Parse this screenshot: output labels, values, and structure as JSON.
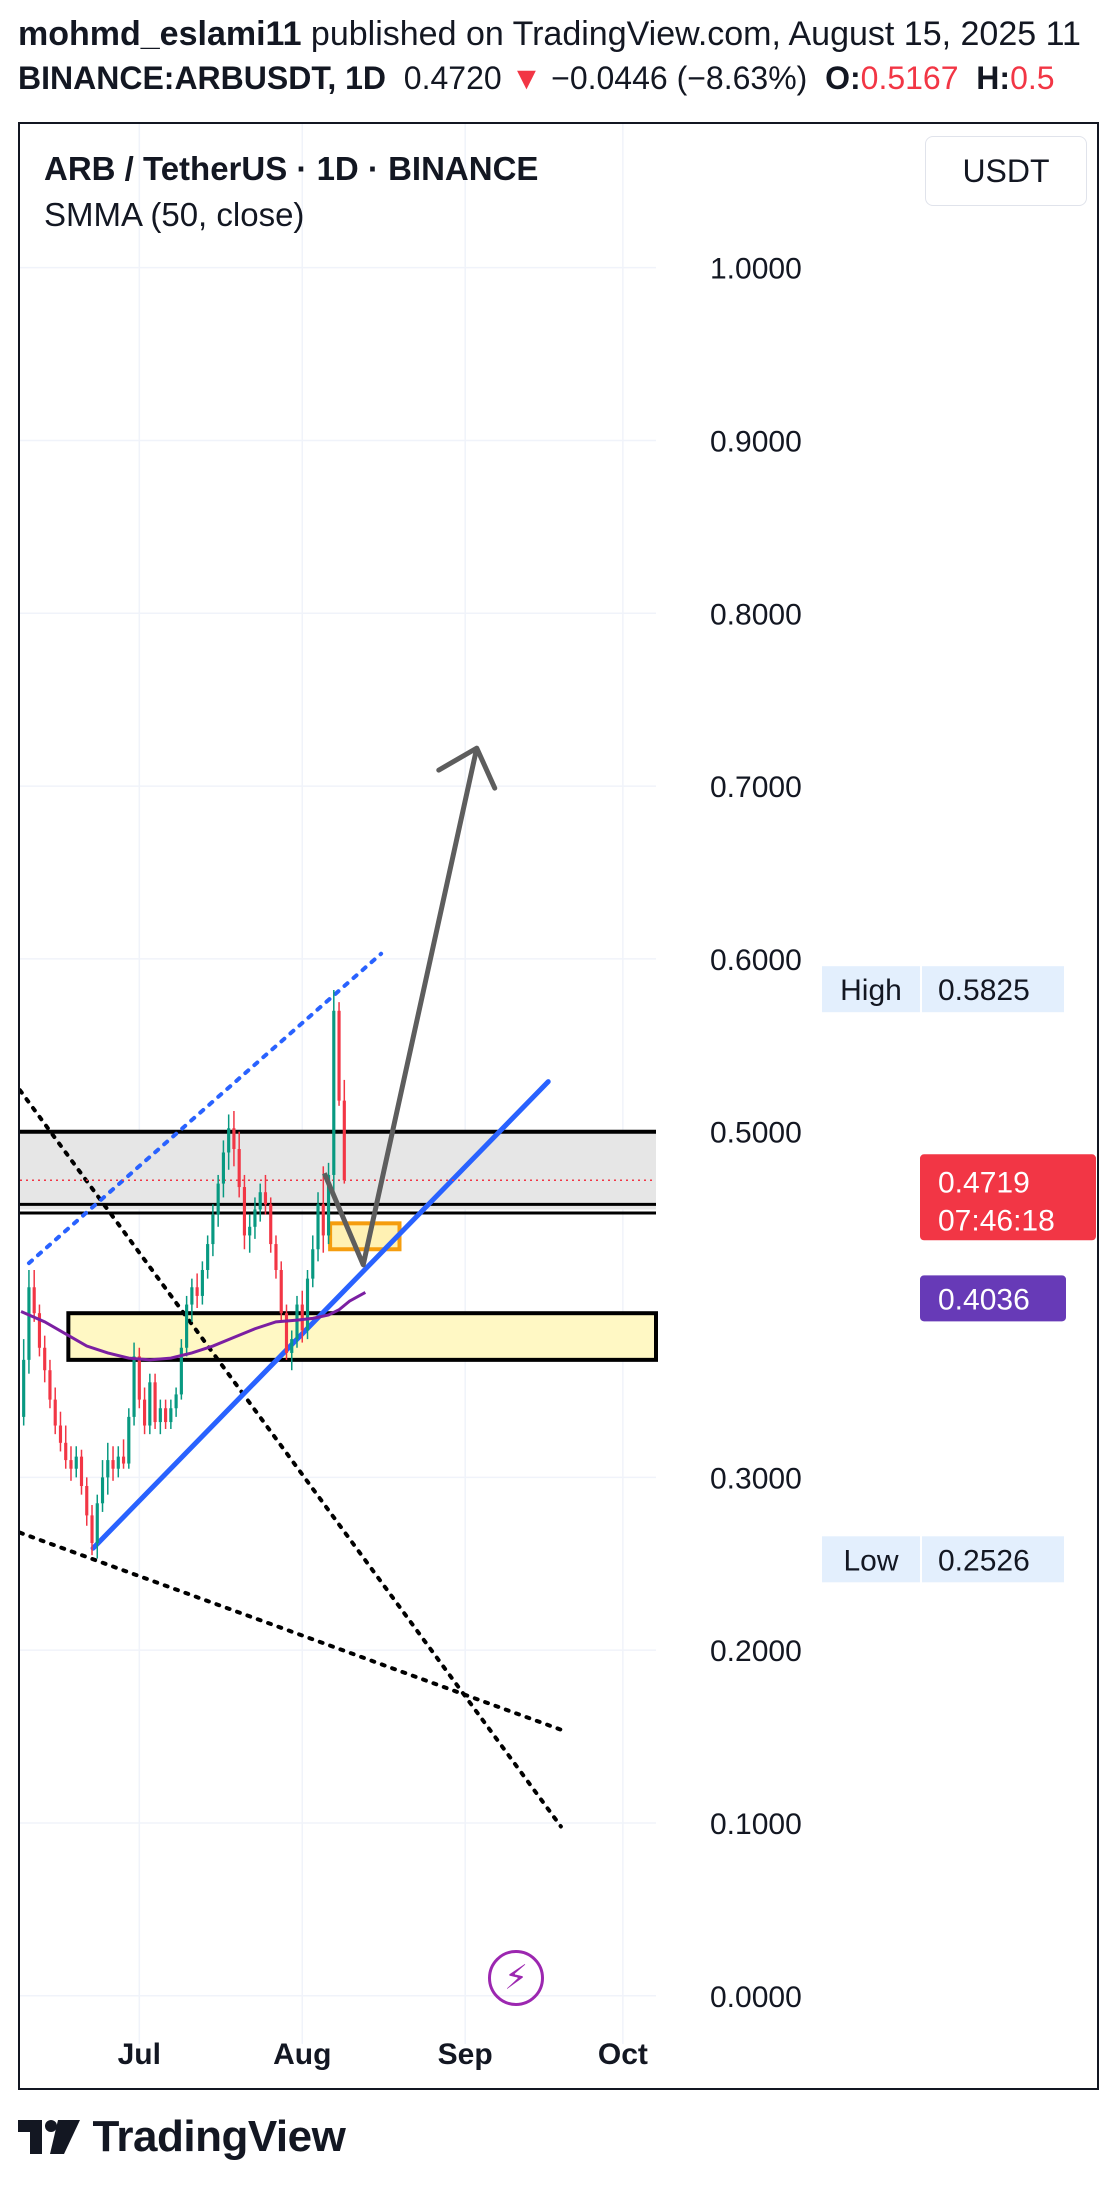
{
  "header": {
    "author": "mohmd_eslami11",
    "published": " published on TradingView.com, August 15, 2025 11",
    "symbol": "BINANCE:ARBUSDT, 1D",
    "last": "0.4720",
    "change_arrow": "▼",
    "change": "−0.0446 (−8.63%)",
    "open_label": "O:",
    "open_value": "0.5167",
    "high_label": "H:",
    "high_value": "0.5"
  },
  "legend": {
    "title": "ARB / TetherUS · 1D · BINANCE",
    "indicator": "SMMA (50, close)"
  },
  "currency_button": "USDT",
  "flash_icon": "⚡",
  "footer": {
    "brand": "TradingView"
  },
  "chart_data": {
    "type": "candlestick",
    "y_axis": {
      "ticks": [
        {
          "value": 1.0,
          "label": "1.0000"
        },
        {
          "value": 0.9,
          "label": "0.9000"
        },
        {
          "value": 0.8,
          "label": "0.8000"
        },
        {
          "value": 0.7,
          "label": "0.7000"
        },
        {
          "value": 0.6,
          "label": "0.6000"
        },
        {
          "value": 0.5,
          "label": "0.5000"
        },
        {
          "value": 0.3,
          "label": "0.3000"
        },
        {
          "value": 0.2,
          "label": "0.2000"
        },
        {
          "value": 0.1,
          "label": "0.1000"
        },
        {
          "value": 0.0,
          "label": "0.0000"
        }
      ],
      "range": [
        -0.014,
        1.06
      ]
    },
    "x_axis": {
      "ticks": [
        {
          "day": 0,
          "label": "Jul"
        },
        {
          "day": 31,
          "label": "Aug"
        },
        {
          "day": 62,
          "label": "Sep"
        },
        {
          "day": 92,
          "label": "Oct"
        }
      ],
      "range": [
        -22.7,
        98.3
      ]
    },
    "price_labels": [
      {
        "label": "High",
        "value": "0.5825",
        "y": 0.5825
      },
      {
        "label": "",
        "value": "0.4719",
        "sub": "07:46:18",
        "y": 0.4719
      },
      {
        "label": "",
        "value": "0.4036",
        "y": 0.4036
      },
      {
        "label": "Low",
        "value": "0.2526",
        "y": 0.2526
      }
    ],
    "last_price": 0.4719,
    "smma": {
      "name": "SMMA (50, close)",
      "color": "#7b1fa2",
      "points": [
        [
          -22.5,
          0.396
        ],
        [
          -18,
          0.39
        ],
        [
          -14,
          0.383
        ],
        [
          -10,
          0.376
        ],
        [
          -6,
          0.372
        ],
        [
          -2,
          0.369
        ],
        [
          2,
          0.368
        ],
        [
          6,
          0.369
        ],
        [
          10,
          0.372
        ],
        [
          14,
          0.376
        ],
        [
          18,
          0.381
        ],
        [
          22,
          0.386
        ],
        [
          26,
          0.39
        ],
        [
          30,
          0.391
        ],
        [
          33,
          0.392
        ],
        [
          36,
          0.394
        ],
        [
          38,
          0.397
        ],
        [
          40,
          0.402
        ],
        [
          43,
          0.407
        ]
      ]
    },
    "candles": [
      {
        "d": -22,
        "o": 0.335,
        "h": 0.38,
        "l": 0.33,
        "c": 0.368
      },
      {
        "d": -21,
        "o": 0.368,
        "h": 0.42,
        "l": 0.36,
        "c": 0.41
      },
      {
        "d": -20,
        "o": 0.41,
        "h": 0.42,
        "l": 0.39,
        "c": 0.395
      },
      {
        "d": -19,
        "o": 0.395,
        "h": 0.4,
        "l": 0.37,
        "c": 0.375
      },
      {
        "d": -18,
        "o": 0.375,
        "h": 0.382,
        "l": 0.355,
        "c": 0.362
      },
      {
        "d": -17,
        "o": 0.362,
        "h": 0.368,
        "l": 0.34,
        "c": 0.345
      },
      {
        "d": -16,
        "o": 0.345,
        "h": 0.352,
        "l": 0.325,
        "c": 0.33
      },
      {
        "d": -15,
        "o": 0.33,
        "h": 0.338,
        "l": 0.315,
        "c": 0.32
      },
      {
        "d": -14,
        "o": 0.32,
        "h": 0.33,
        "l": 0.305,
        "c": 0.31
      },
      {
        "d": -13,
        "o": 0.31,
        "h": 0.318,
        "l": 0.298,
        "c": 0.305
      },
      {
        "d": -12,
        "o": 0.305,
        "h": 0.318,
        "l": 0.3,
        "c": 0.312
      },
      {
        "d": -11,
        "o": 0.312,
        "h": 0.316,
        "l": 0.29,
        "c": 0.295
      },
      {
        "d": -10,
        "o": 0.295,
        "h": 0.3,
        "l": 0.272,
        "c": 0.278
      },
      {
        "d": -9,
        "o": 0.278,
        "h": 0.284,
        "l": 0.255,
        "c": 0.262
      },
      {
        "d": -8,
        "o": 0.262,
        "h": 0.29,
        "l": 0.253,
        "c": 0.285
      },
      {
        "d": -7,
        "o": 0.285,
        "h": 0.31,
        "l": 0.28,
        "c": 0.3
      },
      {
        "d": -6,
        "o": 0.3,
        "h": 0.32,
        "l": 0.29,
        "c": 0.31
      },
      {
        "d": -5,
        "o": 0.31,
        "h": 0.318,
        "l": 0.298,
        "c": 0.305
      },
      {
        "d": -4,
        "o": 0.305,
        "h": 0.318,
        "l": 0.3,
        "c": 0.312
      },
      {
        "d": -3,
        "o": 0.312,
        "h": 0.322,
        "l": 0.305,
        "c": 0.308
      },
      {
        "d": -2,
        "o": 0.308,
        "h": 0.34,
        "l": 0.305,
        "c": 0.335
      },
      {
        "d": -1,
        "o": 0.335,
        "h": 0.378,
        "l": 0.33,
        "c": 0.37
      },
      {
        "d": 0,
        "o": 0.37,
        "h": 0.375,
        "l": 0.34,
        "c": 0.345
      },
      {
        "d": 1,
        "o": 0.345,
        "h": 0.352,
        "l": 0.325,
        "c": 0.33
      },
      {
        "d": 2,
        "o": 0.33,
        "h": 0.36,
        "l": 0.325,
        "c": 0.355
      },
      {
        "d": 3,
        "o": 0.355,
        "h": 0.36,
        "l": 0.328,
        "c": 0.332
      },
      {
        "d": 4,
        "o": 0.332,
        "h": 0.345,
        "l": 0.325,
        "c": 0.34
      },
      {
        "d": 5,
        "o": 0.34,
        "h": 0.345,
        "l": 0.328,
        "c": 0.332
      },
      {
        "d": 6,
        "o": 0.332,
        "h": 0.345,
        "l": 0.328,
        "c": 0.34
      },
      {
        "d": 7,
        "o": 0.34,
        "h": 0.352,
        "l": 0.335,
        "c": 0.348
      },
      {
        "d": 8,
        "o": 0.348,
        "h": 0.38,
        "l": 0.345,
        "c": 0.375
      },
      {
        "d": 9,
        "o": 0.375,
        "h": 0.405,
        "l": 0.37,
        "c": 0.4
      },
      {
        "d": 10,
        "o": 0.4,
        "h": 0.415,
        "l": 0.39,
        "c": 0.41
      },
      {
        "d": 11,
        "o": 0.41,
        "h": 0.418,
        "l": 0.398,
        "c": 0.405
      },
      {
        "d": 12,
        "o": 0.405,
        "h": 0.425,
        "l": 0.4,
        "c": 0.42
      },
      {
        "d": 13,
        "o": 0.42,
        "h": 0.44,
        "l": 0.415,
        "c": 0.435
      },
      {
        "d": 14,
        "o": 0.435,
        "h": 0.458,
        "l": 0.428,
        "c": 0.452
      },
      {
        "d": 15,
        "o": 0.452,
        "h": 0.475,
        "l": 0.445,
        "c": 0.47
      },
      {
        "d": 16,
        "o": 0.47,
        "h": 0.495,
        "l": 0.462,
        "c": 0.488
      },
      {
        "d": 17,
        "o": 0.488,
        "h": 0.51,
        "l": 0.478,
        "c": 0.502
      },
      {
        "d": 18,
        "o": 0.502,
        "h": 0.512,
        "l": 0.48,
        "c": 0.49
      },
      {
        "d": 19,
        "o": 0.49,
        "h": 0.5,
        "l": 0.462,
        "c": 0.468
      },
      {
        "d": 20,
        "o": 0.468,
        "h": 0.475,
        "l": 0.432,
        "c": 0.44
      },
      {
        "d": 21,
        "o": 0.44,
        "h": 0.452,
        "l": 0.43,
        "c": 0.445
      },
      {
        "d": 22,
        "o": 0.445,
        "h": 0.462,
        "l": 0.438,
        "c": 0.455
      },
      {
        "d": 23,
        "o": 0.455,
        "h": 0.47,
        "l": 0.448,
        "c": 0.465
      },
      {
        "d": 24,
        "o": 0.465,
        "h": 0.475,
        "l": 0.452,
        "c": 0.458
      },
      {
        "d": 25,
        "o": 0.458,
        "h": 0.462,
        "l": 0.43,
        "c": 0.435
      },
      {
        "d": 26,
        "o": 0.435,
        "h": 0.44,
        "l": 0.415,
        "c": 0.42
      },
      {
        "d": 27,
        "o": 0.42,
        "h": 0.425,
        "l": 0.39,
        "c": 0.395
      },
      {
        "d": 28,
        "o": 0.395,
        "h": 0.4,
        "l": 0.368,
        "c": 0.372
      },
      {
        "d": 29,
        "o": 0.372,
        "h": 0.385,
        "l": 0.362,
        "c": 0.38
      },
      {
        "d": 30,
        "o": 0.38,
        "h": 0.405,
        "l": 0.375,
        "c": 0.4
      },
      {
        "d": 31,
        "o": 0.4,
        "h": 0.408,
        "l": 0.378,
        "c": 0.385
      },
      {
        "d": 32,
        "o": 0.385,
        "h": 0.42,
        "l": 0.38,
        "c": 0.415
      },
      {
        "d": 33,
        "o": 0.415,
        "h": 0.44,
        "l": 0.41,
        "c": 0.432
      },
      {
        "d": 34,
        "o": 0.432,
        "h": 0.465,
        "l": 0.425,
        "c": 0.458
      },
      {
        "d": 35,
        "o": 0.458,
        "h": 0.48,
        "l": 0.43,
        "c": 0.44
      },
      {
        "d": 36,
        "o": 0.44,
        "h": 0.482,
        "l": 0.435,
        "c": 0.475
      },
      {
        "d": 37,
        "o": 0.475,
        "h": 0.582,
        "l": 0.465,
        "c": 0.57
      },
      {
        "d": 38,
        "o": 0.57,
        "h": 0.575,
        "l": 0.515,
        "c": 0.518
      },
      {
        "d": 39,
        "o": 0.518,
        "h": 0.53,
        "l": 0.47,
        "c": 0.472
      }
    ]
  }
}
